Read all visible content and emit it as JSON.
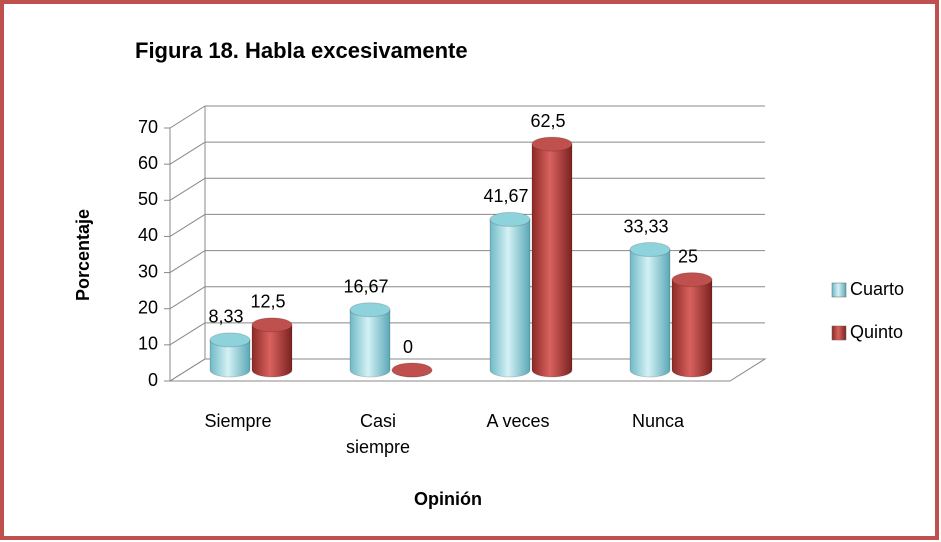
{
  "chart_data": {
    "type": "bar3d",
    "title": "Figura 18. Habla excesivamente",
    "x_label": "Opinión",
    "y_label": "Porcentaje",
    "categories": [
      "Siempre",
      "Casi siempre",
      "A veces",
      "Nunca"
    ],
    "series": [
      {
        "name": "Cuarto",
        "color": "#8ed2dc",
        "values": [
          8.33,
          16.67,
          41.67,
          33.33
        ],
        "value_labels": [
          "8,33",
          "16,67",
          "41,67",
          "33,33"
        ]
      },
      {
        "name": "Quinto",
        "color": "#c0504d",
        "values": [
          12.5,
          0,
          62.5,
          25
        ],
        "value_labels": [
          "12,5",
          "0",
          "62,5",
          "25"
        ]
      }
    ],
    "ylim": [
      0,
      70
    ],
    "yticks": [
      0,
      10,
      20,
      30,
      40,
      50,
      60,
      70
    ],
    "grid": true,
    "legend": "right"
  }
}
